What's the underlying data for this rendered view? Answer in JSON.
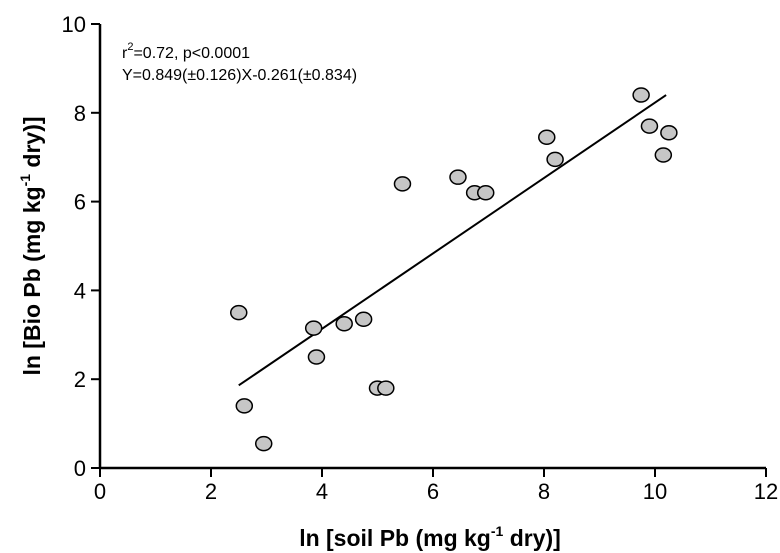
{
  "chart_data": {
    "type": "scatter",
    "xlabel": {
      "pre": "ln [soil Pb (mg kg",
      "sup": "-1",
      "post": " dry)]"
    },
    "ylabel": {
      "pre": "ln [Bio Pb (mg kg",
      "sup": "-1",
      "post": " dry)]"
    },
    "xlim": [
      0,
      12
    ],
    "ylim": [
      0,
      10
    ],
    "xticks": [
      0,
      2,
      4,
      6,
      8,
      10,
      12
    ],
    "yticks": [
      0,
      2,
      4,
      6,
      8,
      10
    ],
    "grid": false,
    "annotation": {
      "line1_r": "r",
      "line1_sup": "2",
      "line1_rest": "=0.72, p<0.0001",
      "line2": "Y=0.849(±0.126)X-0.261(±0.834)"
    },
    "regression": {
      "slope": 0.849,
      "intercept": -0.261,
      "x_start": 2.5,
      "x_end": 10.2
    },
    "points": [
      {
        "x": 2.5,
        "y": 3.5
      },
      {
        "x": 2.6,
        "y": 1.4
      },
      {
        "x": 2.95,
        "y": 0.55
      },
      {
        "x": 3.85,
        "y": 3.15
      },
      {
        "x": 3.9,
        "y": 2.5
      },
      {
        "x": 4.4,
        "y": 3.25
      },
      {
        "x": 4.75,
        "y": 3.35
      },
      {
        "x": 5.0,
        "y": 1.8
      },
      {
        "x": 5.15,
        "y": 1.8
      },
      {
        "x": 5.45,
        "y": 6.4
      },
      {
        "x": 6.45,
        "y": 6.55
      },
      {
        "x": 6.75,
        "y": 6.2
      },
      {
        "x": 6.95,
        "y": 6.2
      },
      {
        "x": 8.05,
        "y": 7.45
      },
      {
        "x": 8.2,
        "y": 6.95
      },
      {
        "x": 9.75,
        "y": 8.4
      },
      {
        "x": 9.9,
        "y": 7.7
      },
      {
        "x": 10.15,
        "y": 7.05
      },
      {
        "x": 10.25,
        "y": 7.55
      }
    ],
    "marker_fill": "#c6c6c6",
    "marker_stroke": "#000000"
  }
}
